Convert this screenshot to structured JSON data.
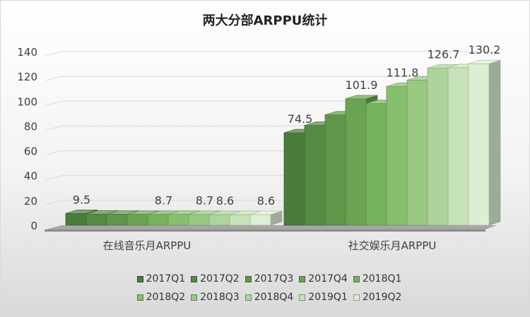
{
  "chart_data": {
    "type": "bar",
    "title": "两大分部ARPPU统计",
    "categories": [
      "在线音乐月ARPPU",
      "社交娱乐月ARPPU"
    ],
    "ylim": [
      0,
      140
    ],
    "yticks": [
      0,
      20,
      40,
      60,
      80,
      100,
      120,
      140
    ],
    "grid": true,
    "legend_position": "bottom",
    "series": [
      {
        "name": "2017Q1",
        "color": "#4a7c3b",
        "values": [
          9.5,
          74.5
        ],
        "labels": [
          "9.5",
          "74.5"
        ]
      },
      {
        "name": "2017Q2",
        "color": "#558a43",
        "values": [
          9.0,
          80.5
        ],
        "labels": [
          "",
          ""
        ]
      },
      {
        "name": "2017Q3",
        "color": "#5f964a",
        "values": [
          8.9,
          89.0
        ],
        "labels": [
          "",
          ""
        ]
      },
      {
        "name": "2017Q4",
        "color": "#6aa452",
        "values": [
          8.8,
          101.9
        ],
        "labels": [
          "",
          "101.9"
        ]
      },
      {
        "name": "2018Q1",
        "color": "#76b25d",
        "values": [
          8.7,
          98.0
        ],
        "labels": [
          "8.7",
          ""
        ]
      },
      {
        "name": "2018Q2",
        "color": "#86bf6d",
        "values": [
          8.8,
          111.8
        ],
        "labels": [
          "",
          "111.8"
        ]
      },
      {
        "name": "2018Q3",
        "color": "#98c983",
        "values": [
          8.7,
          117.0
        ],
        "labels": [
          "8.7",
          ""
        ]
      },
      {
        "name": "2018Q4",
        "color": "#add59b",
        "values": [
          8.6,
          126.7
        ],
        "labels": [
          "8.6",
          "126.7"
        ]
      },
      {
        "name": "2019Q1",
        "color": "#c6e2b8",
        "values": [
          8.6,
          127.0
        ],
        "labels": [
          "",
          ""
        ]
      },
      {
        "name": "2019Q2",
        "color": "#dcefd2",
        "values": [
          8.6,
          130.2
        ],
        "labels": [
          "8.6",
          "130.2"
        ]
      }
    ]
  }
}
